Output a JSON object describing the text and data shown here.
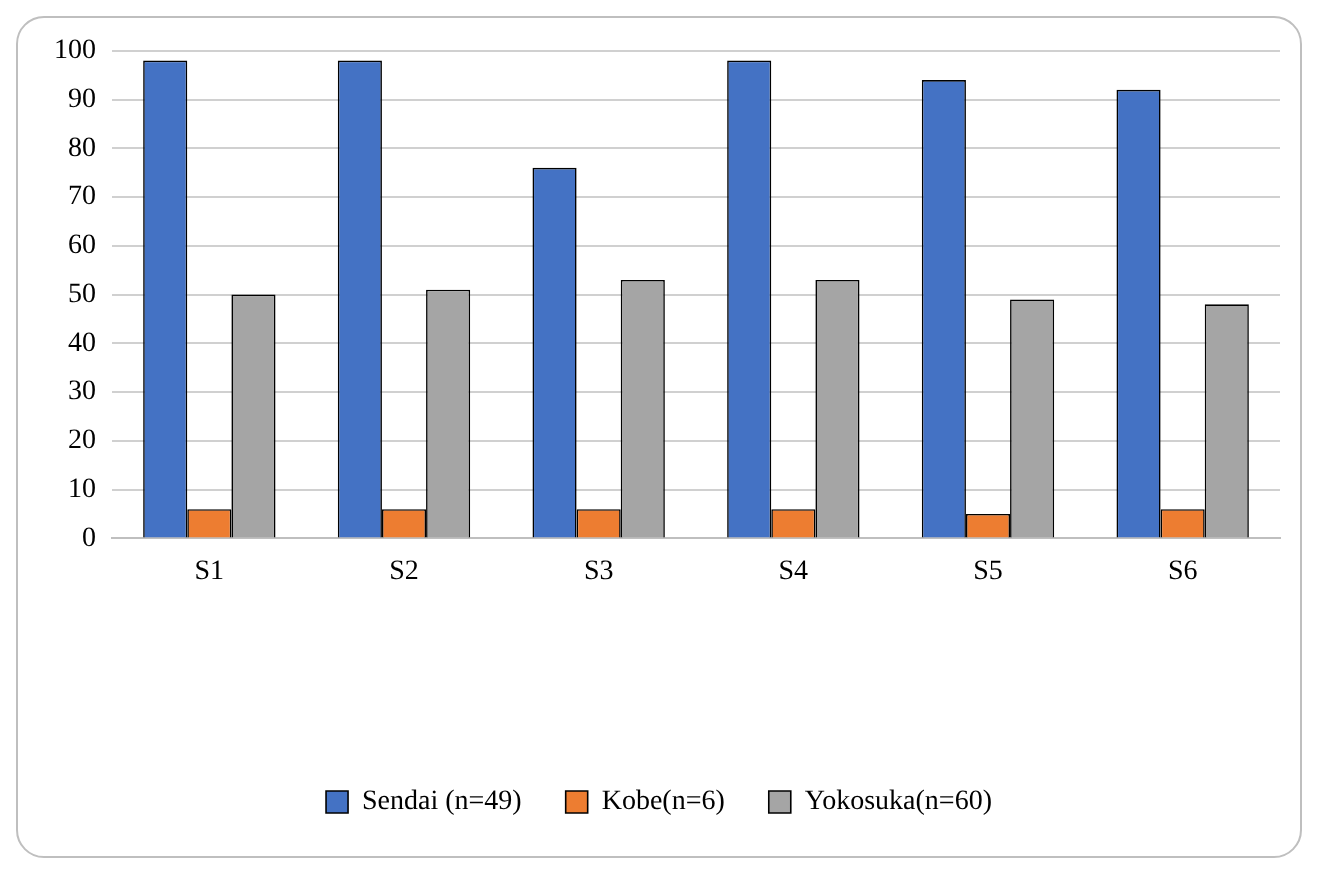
{
  "chart_data": {
    "type": "bar",
    "categories": [
      "S1",
      "S2",
      "S3",
      "S4",
      "S5",
      "S6"
    ],
    "series": [
      {
        "name": "Sendai (n=49)",
        "color": "#4472c4",
        "values": [
          98,
          98,
          76,
          98,
          94,
          92
        ]
      },
      {
        "name": "Kobe(n=6)",
        "color": "#ed7d31",
        "values": [
          6,
          6,
          6,
          6,
          5,
          6
        ]
      },
      {
        "name": "Yokosuka(n=60)",
        "color": "#a5a5a5",
        "values": [
          50,
          51,
          53,
          53,
          49,
          48
        ]
      }
    ],
    "ylim": [
      0,
      100
    ],
    "yticks": [
      0,
      10,
      20,
      30,
      40,
      50,
      60,
      70,
      80,
      90,
      100
    ],
    "grid": "y",
    "legend": "bottom"
  }
}
